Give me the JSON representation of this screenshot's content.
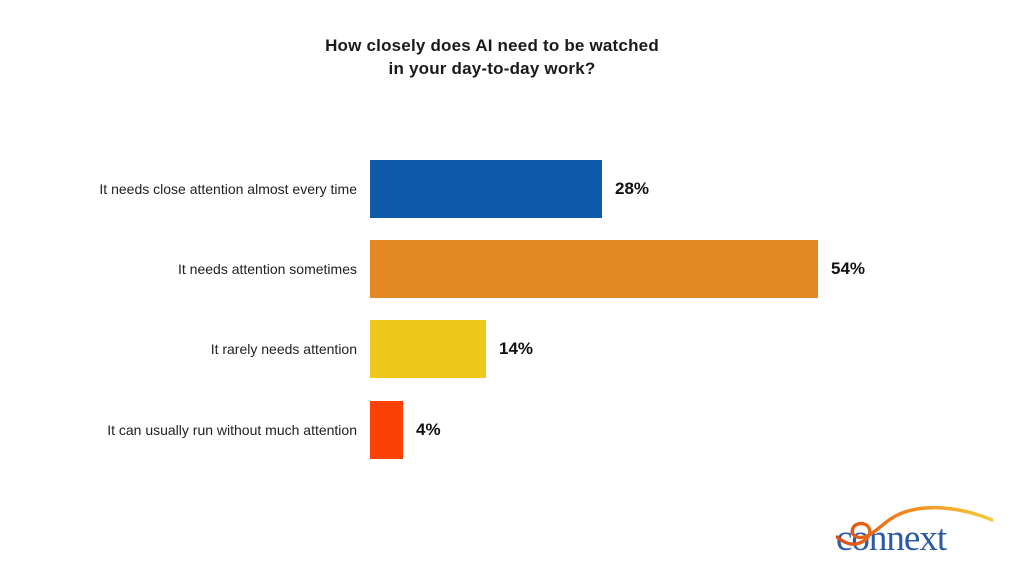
{
  "title": {
    "line1": "How closely does AI need to be watched",
    "line2": "in your day-to-day work?"
  },
  "chart_data": {
    "type": "bar",
    "orientation": "horizontal",
    "title": "How closely does AI need to be watched in your day-to-day work?",
    "categories": [
      "It needs close attention almost every time",
      "It needs attention sometimes",
      "It rarely needs attention",
      "It can usually run without much attention"
    ],
    "values": [
      28,
      54,
      14,
      4
    ],
    "value_labels": [
      "28%",
      "54%",
      "14%",
      "4%"
    ],
    "bar_colors": [
      "#0F59A9",
      "#E38A24",
      "#EFC81E",
      "#FB4206"
    ],
    "xlabel": "",
    "ylabel": "",
    "xlim": [
      0,
      60
    ],
    "grid": false,
    "legend": false,
    "value_label_position": "outside-end"
  },
  "logo": {
    "text": "connext",
    "text_color": "#2B5BA7",
    "swoosh_colors": [
      "#DD4A14",
      "#F08A1E",
      "#F7C93E"
    ]
  }
}
